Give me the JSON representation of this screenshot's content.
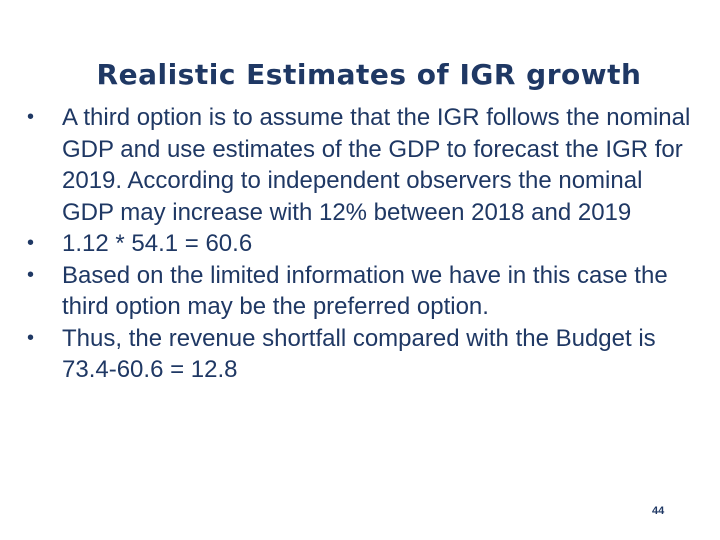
{
  "slide": {
    "title": "Realistic Estimates of IGR growth",
    "bullet_symbol": "•",
    "bullets": [
      "A third option is to assume that the IGR follows the nominal GDP and use estimates of the GDP to forecast the IGR for 2019. According to independent observers the nominal GDP may increase with 12% between 2018 and 2019",
      "1.12 * 54.1 = 60.6",
      "Based on the limited information we have in this case the third option may be the preferred option.",
      "Thus, the revenue shortfall compared with the Budget is 73.4-60.6 = 12.8"
    ],
    "page_number": "44"
  },
  "colors": {
    "text": "#1f3864",
    "background": "#ffffff"
  }
}
